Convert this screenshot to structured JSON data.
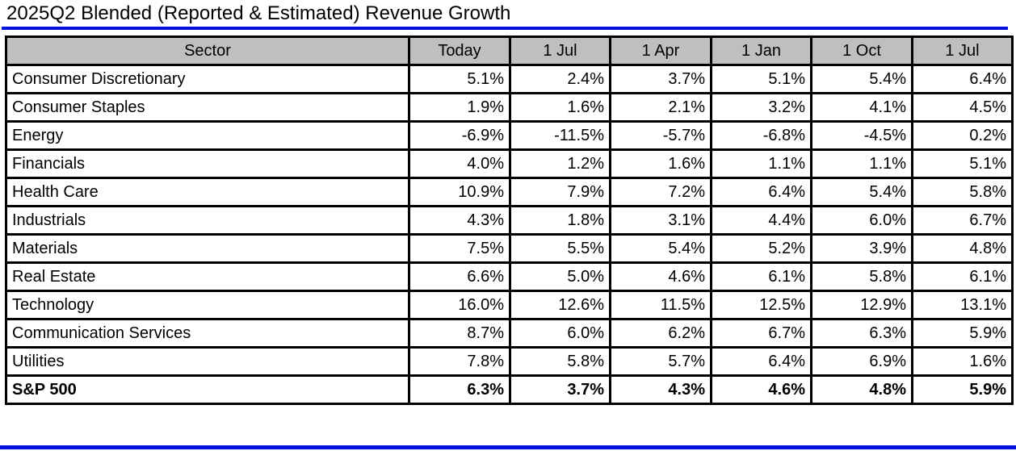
{
  "title": "2025Q2 Blended (Reported & Estimated) Revenue Growth",
  "colors": {
    "accent_blue": "#0011dd",
    "header_gray": "#bfbfbf",
    "border_black": "#000000"
  },
  "chart_data": {
    "type": "table",
    "title": "2025Q2 Blended (Reported & Estimated) Revenue Growth",
    "columns": [
      "Sector",
      "Today",
      "1 Jul",
      "1 Apr",
      "1 Jan",
      "1 Oct",
      "1 Jul"
    ],
    "rows": [
      {
        "sector": "Consumer Discretionary",
        "values": [
          "5.1%",
          "2.4%",
          "3.7%",
          "5.1%",
          "5.4%",
          "6.4%"
        ],
        "bold": false
      },
      {
        "sector": "Consumer Staples",
        "values": [
          "1.9%",
          "1.6%",
          "2.1%",
          "3.2%",
          "4.1%",
          "4.5%"
        ],
        "bold": false
      },
      {
        "sector": "Energy",
        "values": [
          "-6.9%",
          "-11.5%",
          "-5.7%",
          "-6.8%",
          "-4.5%",
          "0.2%"
        ],
        "bold": false
      },
      {
        "sector": "Financials",
        "values": [
          "4.0%",
          "1.2%",
          "1.6%",
          "1.1%",
          "1.1%",
          "5.1%"
        ],
        "bold": false
      },
      {
        "sector": "Health Care",
        "values": [
          "10.9%",
          "7.9%",
          "7.2%",
          "6.4%",
          "5.4%",
          "5.8%"
        ],
        "bold": false
      },
      {
        "sector": "Industrials",
        "values": [
          "4.3%",
          "1.8%",
          "3.1%",
          "4.4%",
          "6.0%",
          "6.7%"
        ],
        "bold": false
      },
      {
        "sector": "Materials",
        "values": [
          "7.5%",
          "5.5%",
          "5.4%",
          "5.2%",
          "3.9%",
          "4.8%"
        ],
        "bold": false
      },
      {
        "sector": "Real Estate",
        "values": [
          "6.6%",
          "5.0%",
          "4.6%",
          "6.1%",
          "5.8%",
          "6.1%"
        ],
        "bold": false
      },
      {
        "sector": "Technology",
        "values": [
          "16.0%",
          "12.6%",
          "11.5%",
          "12.5%",
          "12.9%",
          "13.1%"
        ],
        "bold": false
      },
      {
        "sector": "Communication Services",
        "values": [
          "8.7%",
          "6.0%",
          "6.2%",
          "6.7%",
          "6.3%",
          "5.9%"
        ],
        "bold": false
      },
      {
        "sector": "Utilities",
        "values": [
          "7.8%",
          "5.8%",
          "5.7%",
          "6.4%",
          "6.9%",
          "1.6%"
        ],
        "bold": false
      },
      {
        "sector": "S&P 500",
        "values": [
          "6.3%",
          "3.7%",
          "4.3%",
          "4.6%",
          "4.8%",
          "5.9%"
        ],
        "bold": true
      }
    ]
  }
}
